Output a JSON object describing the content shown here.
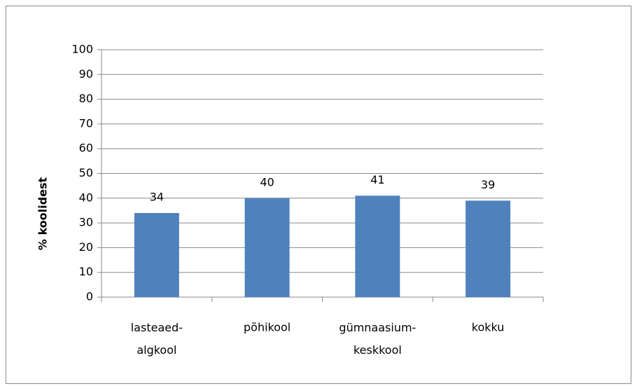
{
  "chart_data": {
    "type": "bar",
    "y_label": "% koolidest",
    "categories": [
      "lasteaed-algkool",
      "põhikool",
      "gümnaasium-keskkool",
      "kokku"
    ],
    "values": [
      34,
      40,
      41,
      39
    ],
    "color": "#4f81bd",
    "ylim": [
      0,
      100
    ],
    "yticks": [
      0,
      10,
      20,
      30,
      40,
      50,
      60,
      70,
      80,
      90,
      100
    ],
    "grid": true,
    "data_labels": true
  }
}
